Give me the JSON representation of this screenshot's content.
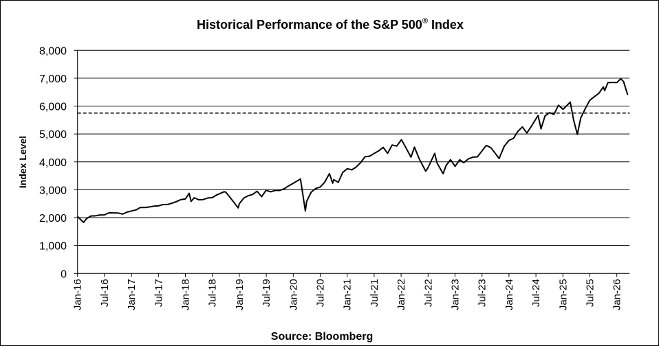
{
  "chart_data": {
    "type": "line",
    "title": "Historical  Performance  of the S&P 500",
    "title_superscript": "®",
    "title_suffix": " Index",
    "ylabel": "Index Level",
    "xlabel": "",
    "source": "Source: Bloomberg",
    "ylim": [
      0,
      8000
    ],
    "yticks": [
      0,
      1000,
      2000,
      3000,
      4000,
      5000,
      6000,
      7000,
      8000
    ],
    "ytick_labels": [
      "0",
      "1,000",
      "2,000",
      "3,000",
      "4,000",
      "5,000",
      "6,000",
      "7,000",
      "8,000"
    ],
    "xlim": [
      "2016-01-01",
      "2026-03-15"
    ],
    "xtick_labels": [
      "Jan-16",
      "Jul-16",
      "Jan-17",
      "Jul-17",
      "Jan-18",
      "Jul-18",
      "Jan-19",
      "Jul-19",
      "Jan-20",
      "Jul-20",
      "Jan-21",
      "Jul-21",
      "Jan-22",
      "Jul-22",
      "Jan-23",
      "Jul-23",
      "Jan-24",
      "Jul-24",
      "Jan-25",
      "Jul-25",
      "Jan-26"
    ],
    "grid": "horizontal",
    "reference_line": {
      "value": 5750,
      "style": "dashed"
    },
    "line_color": "#000000",
    "series": [
      {
        "points": [
          [
            "2016-01-01",
            2040
          ],
          [
            "2016-02-11",
            1830
          ],
          [
            "2016-03-01",
            1960
          ],
          [
            "2016-04-01",
            2060
          ],
          [
            "2016-05-01",
            2065
          ],
          [
            "2016-06-01",
            2097
          ],
          [
            "2016-07-01",
            2100
          ],
          [
            "2016-08-01",
            2174
          ],
          [
            "2016-09-01",
            2171
          ],
          [
            "2016-10-01",
            2168
          ],
          [
            "2016-11-01",
            2126
          ],
          [
            "2016-12-01",
            2199
          ],
          [
            "2017-01-01",
            2239
          ],
          [
            "2017-02-01",
            2279
          ],
          [
            "2017-03-01",
            2364
          ],
          [
            "2017-04-01",
            2363
          ],
          [
            "2017-05-01",
            2384
          ],
          [
            "2017-06-01",
            2412
          ],
          [
            "2017-07-01",
            2423
          ],
          [
            "2017-08-01",
            2470
          ],
          [
            "2017-09-01",
            2472
          ],
          [
            "2017-10-01",
            2519
          ],
          [
            "2017-11-01",
            2575
          ],
          [
            "2017-12-01",
            2648
          ],
          [
            "2018-01-01",
            2674
          ],
          [
            "2018-01-26",
            2873
          ],
          [
            "2018-02-08",
            2581
          ],
          [
            "2018-03-01",
            2714
          ],
          [
            "2018-04-01",
            2641
          ],
          [
            "2018-05-01",
            2648
          ],
          [
            "2018-06-01",
            2705
          ],
          [
            "2018-07-01",
            2718
          ],
          [
            "2018-08-01",
            2816
          ],
          [
            "2018-09-20",
            2930
          ],
          [
            "2018-10-01",
            2914
          ],
          [
            "2018-11-01",
            2712
          ],
          [
            "2018-12-24",
            2351
          ],
          [
            "2019-01-01",
            2507
          ],
          [
            "2019-02-01",
            2704
          ],
          [
            "2019-03-01",
            2784
          ],
          [
            "2019-04-01",
            2834
          ],
          [
            "2019-05-01",
            2946
          ],
          [
            "2019-06-01",
            2752
          ],
          [
            "2019-07-01",
            2980
          ],
          [
            "2019-08-01",
            2926
          ],
          [
            "2019-09-01",
            2977
          ],
          [
            "2019-10-01",
            2977
          ],
          [
            "2019-11-01",
            3038
          ],
          [
            "2019-12-01",
            3141
          ],
          [
            "2020-01-01",
            3231
          ],
          [
            "2020-02-19",
            3386
          ],
          [
            "2020-03-23",
            2237
          ],
          [
            "2020-04-01",
            2585
          ],
          [
            "2020-05-01",
            2912
          ],
          [
            "2020-06-01",
            3044
          ],
          [
            "2020-07-01",
            3100
          ],
          [
            "2020-08-01",
            3271
          ],
          [
            "2020-09-02",
            3580
          ],
          [
            "2020-09-24",
            3237
          ],
          [
            "2020-10-01",
            3363
          ],
          [
            "2020-11-01",
            3270
          ],
          [
            "2020-12-01",
            3622
          ],
          [
            "2021-01-01",
            3756
          ],
          [
            "2021-02-01",
            3714
          ],
          [
            "2021-03-01",
            3811
          ],
          [
            "2021-04-01",
            3973
          ],
          [
            "2021-05-01",
            4181
          ],
          [
            "2021-06-01",
            4204
          ],
          [
            "2021-07-01",
            4298
          ],
          [
            "2021-08-01",
            4395
          ],
          [
            "2021-09-01",
            4523
          ],
          [
            "2021-10-01",
            4308
          ],
          [
            "2021-11-01",
            4605
          ],
          [
            "2021-12-01",
            4567
          ],
          [
            "2022-01-03",
            4796
          ],
          [
            "2022-02-01",
            4516
          ],
          [
            "2022-03-08",
            4170
          ],
          [
            "2022-04-01",
            4530
          ],
          [
            "2022-05-01",
            4132
          ],
          [
            "2022-06-16",
            3667
          ],
          [
            "2022-07-01",
            3785
          ],
          [
            "2022-08-16",
            4305
          ],
          [
            "2022-09-01",
            3955
          ],
          [
            "2022-10-12",
            3577
          ],
          [
            "2022-11-01",
            3872
          ],
          [
            "2022-12-01",
            4080
          ],
          [
            "2023-01-01",
            3840
          ],
          [
            "2023-02-01",
            4077
          ],
          [
            "2023-03-01",
            3970
          ],
          [
            "2023-04-01",
            4109
          ],
          [
            "2023-05-01",
            4169
          ],
          [
            "2023-06-01",
            4180
          ],
          [
            "2023-07-31",
            4589
          ],
          [
            "2023-08-01",
            4589
          ],
          [
            "2023-09-01",
            4508
          ],
          [
            "2023-10-27",
            4117
          ],
          [
            "2023-11-01",
            4194
          ],
          [
            "2023-12-01",
            4568
          ],
          [
            "2024-01-01",
            4770
          ],
          [
            "2024-02-01",
            4846
          ],
          [
            "2024-03-01",
            5096
          ],
          [
            "2024-04-01",
            5254
          ],
          [
            "2024-05-01",
            5036
          ],
          [
            "2024-06-01",
            5278
          ],
          [
            "2024-07-16",
            5667
          ],
          [
            "2024-08-05",
            5186
          ],
          [
            "2024-09-01",
            5648
          ],
          [
            "2024-10-01",
            5762
          ],
          [
            "2024-11-01",
            5705
          ],
          [
            "2024-12-01",
            6032
          ],
          [
            "2025-01-01",
            5882
          ],
          [
            "2025-02-19",
            6144
          ],
          [
            "2025-03-13",
            5521
          ],
          [
            "2025-04-08",
            4982
          ],
          [
            "2025-05-01",
            5569
          ],
          [
            "2025-06-01",
            5912
          ],
          [
            "2025-07-01",
            6205
          ],
          [
            "2025-08-01",
            6339
          ],
          [
            "2025-09-01",
            6460
          ],
          [
            "2025-10-01",
            6688
          ],
          [
            "2025-10-10",
            6552
          ],
          [
            "2025-11-01",
            6840
          ],
          [
            "2025-12-01",
            6849
          ],
          [
            "2026-01-01",
            6845
          ],
          [
            "2026-01-27",
            6980
          ],
          [
            "2026-02-15",
            6880
          ],
          [
            "2026-03-15",
            6400
          ]
        ]
      }
    ]
  }
}
